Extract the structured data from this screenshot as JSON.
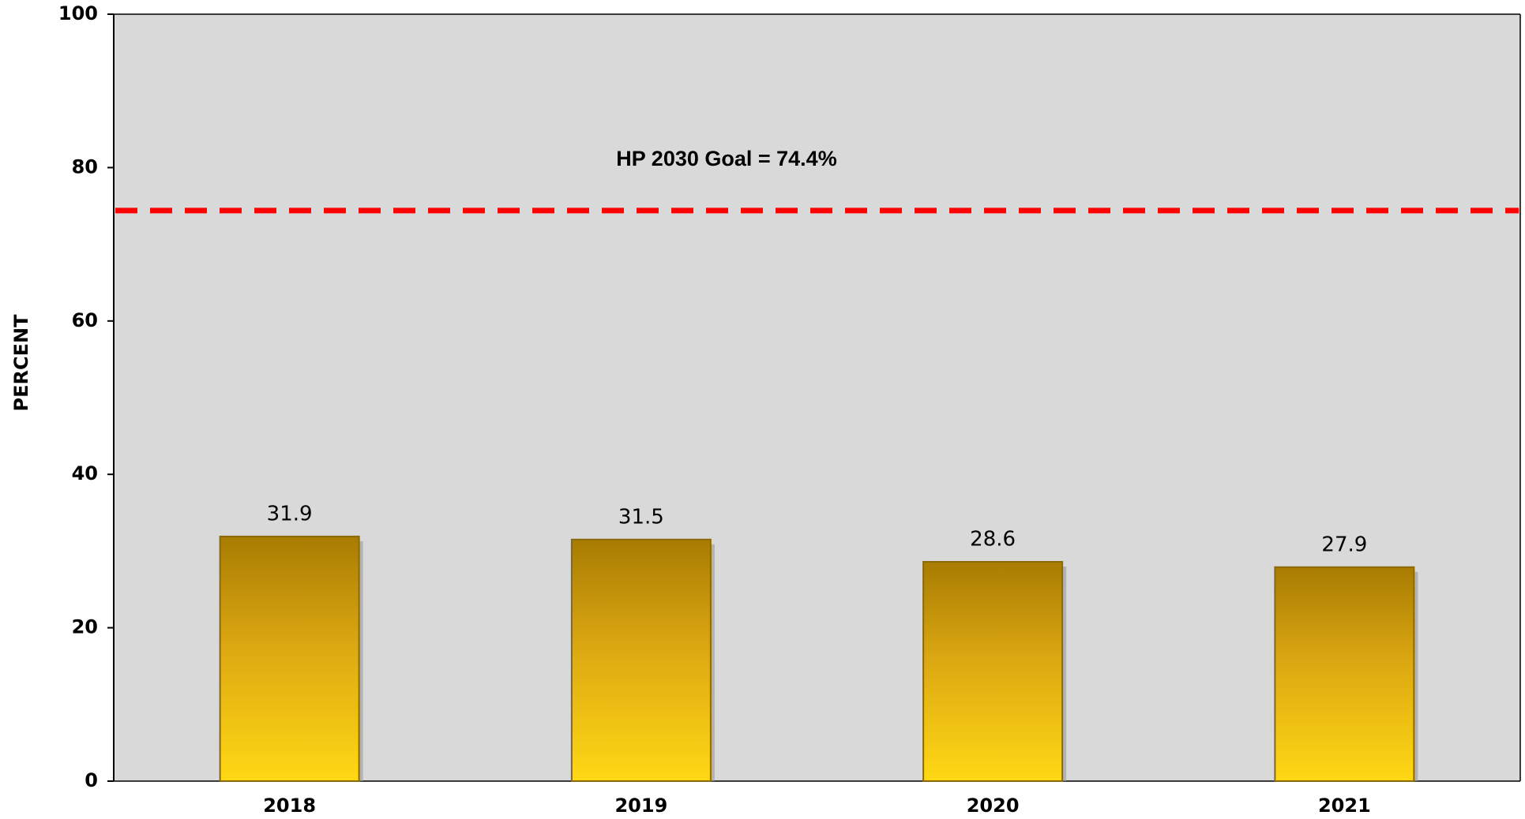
{
  "chart_data": {
    "type": "bar",
    "y_label": "PERCENT",
    "annotation": "HP 2030 Goal = 74.4%",
    "goal_value": 74.4,
    "goal_color": "#ff0000",
    "categories": [
      "2018",
      "2019",
      "2020",
      "2021"
    ],
    "values": [
      31.9,
      31.5,
      28.6,
      27.9
    ],
    "color": "#f2be10",
    "ylim": [
      0,
      100
    ],
    "yticks": [
      0,
      20,
      40,
      60,
      80,
      100
    ],
    "grid": false
  }
}
